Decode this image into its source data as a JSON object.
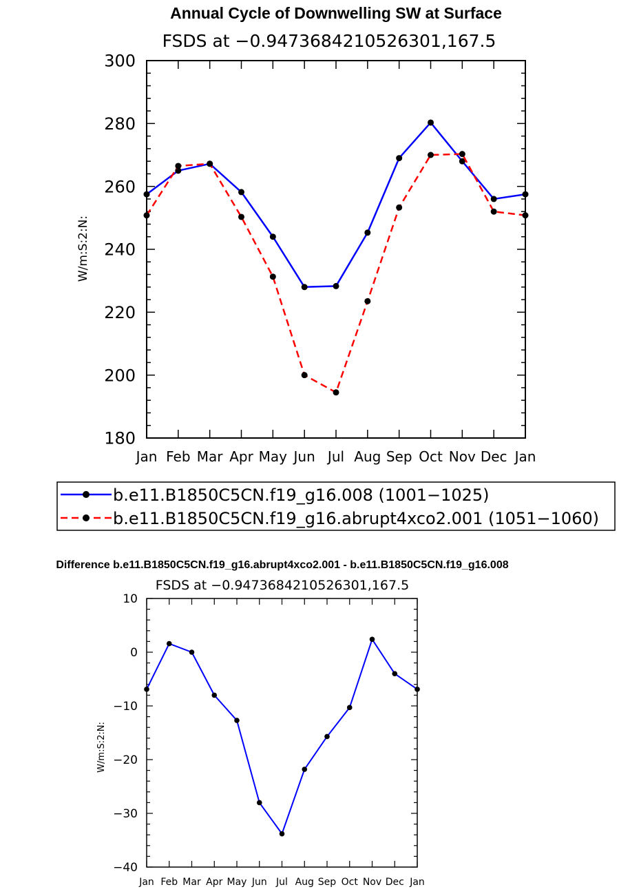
{
  "chart_data": [
    {
      "type": "line",
      "title": "Annual Cycle of Downwelling SW at Surface",
      "subtitle": "FSDS at −0.9473684210526301,167.5",
      "xlabel": "",
      "ylabel": "W/m:S:2:N:",
      "categories": [
        "Jan",
        "Feb",
        "Mar",
        "Apr",
        "May",
        "Jun",
        "Jul",
        "Aug",
        "Sep",
        "Oct",
        "Nov",
        "Dec",
        "Jan"
      ],
      "ylim": [
        180,
        300
      ],
      "yticks": [
        "180",
        "200",
        "220",
        "240",
        "260",
        "280",
        "300"
      ],
      "series": [
        {
          "name": "b.e11.B1850C5CN.f19_g16.008 (1001−1025)",
          "color": "#0000ff",
          "dash": "solid",
          "values": [
            257.5,
            265,
            267.2,
            258.2,
            244,
            228,
            228.3,
            245.3,
            269,
            280.3,
            268,
            256,
            257.5
          ]
        },
        {
          "name": "b.e11.B1850C5CN.f19_g16.abrupt4xco2.001 (1051−1060)",
          "color": "#ff0000",
          "dash": "dashed",
          "values": [
            250.8,
            266.5,
            267.2,
            250.3,
            231.3,
            200,
            194.5,
            223.5,
            253.3,
            270,
            270.3,
            252,
            250.8
          ]
        }
      ],
      "legend": "below"
    },
    {
      "type": "line",
      "title": "Difference b.e11.B1850C5CN.f19_g16.abrupt4xco2.001 - b.e11.B1850C5CN.f19_g16.008",
      "subtitle": "FSDS at −0.9473684210526301,167.5",
      "xlabel": "",
      "ylabel": "W/m:S:2:N:",
      "categories": [
        "Jan",
        "Feb",
        "Mar",
        "Apr",
        "May",
        "Jun",
        "Jul",
        "Aug",
        "Sep",
        "Oct",
        "Nov",
        "Dec",
        "Jan"
      ],
      "ylim": [
        -40,
        10
      ],
      "yticks": [
        "−40",
        "−30",
        "−20",
        "−10",
        "0",
        "10"
      ],
      "series": [
        {
          "name": "Difference",
          "color": "#0000ff",
          "dash": "solid",
          "values": [
            -6.9,
            1.6,
            0,
            -8,
            -12.7,
            -28,
            -33.8,
            -21.8,
            -15.7,
            -10.3,
            2.4,
            -4,
            -6.9
          ]
        }
      ]
    }
  ]
}
